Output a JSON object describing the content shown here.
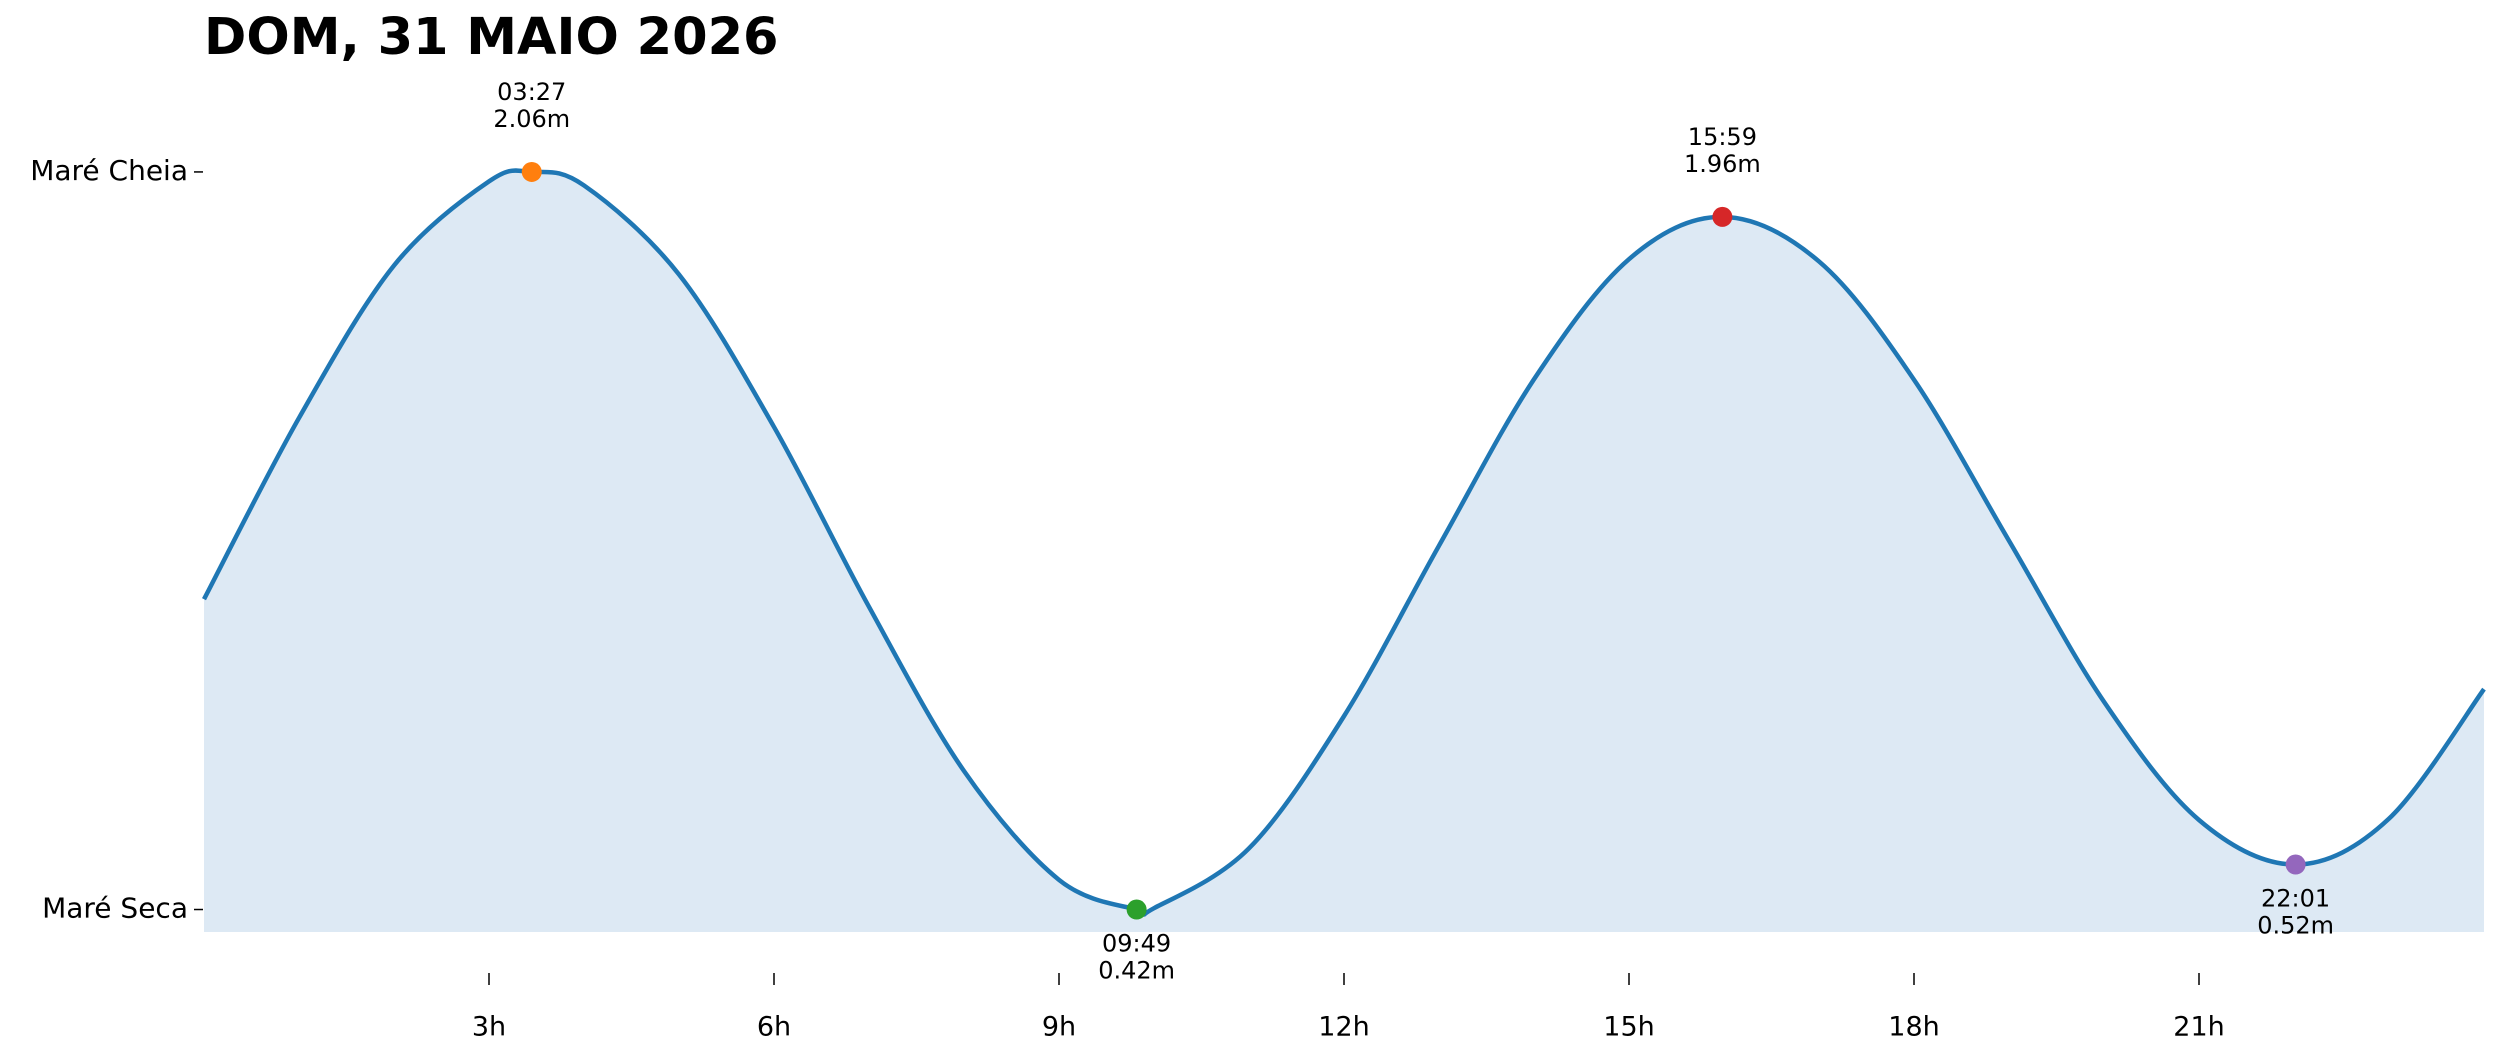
{
  "chart_data": {
    "type": "line",
    "title": "DOM, 31 MAIO 2026",
    "x": [
      0,
      1,
      2,
      3,
      3.45,
      4,
      5,
      6,
      7,
      8,
      9,
      9.817,
      10,
      11,
      12,
      13,
      14,
      15,
      15.983,
      17,
      18,
      19,
      20,
      21,
      22.017,
      23,
      24
    ],
    "series": [
      {
        "color": "#1f77b4",
        "fill_color": "#dde9f4",
        "values": [
          1.11,
          1.513,
          1.852,
          2.039,
          2.06,
          2.03,
          1.832,
          1.493,
          1.093,
          0.728,
          0.486,
          0.42,
          0.423,
          0.556,
          0.85,
          1.229,
          1.599,
          1.866,
          1.96,
          1.861,
          1.598,
          1.24,
          0.882,
          0.619,
          0.52,
          0.622,
          0.91
        ]
      }
    ],
    "extremes": {
      "x": [
        3.45,
        9.817,
        15.983,
        22.017
      ],
      "x_labels": [
        "03:27",
        "09:49",
        "15:59",
        "22:01"
      ],
      "values": [
        2.06,
        0.42,
        1.96,
        0.52
      ],
      "value_labels": [
        "2.06m",
        "0.42m",
        "1.96m",
        "0.52m"
      ],
      "kinds": [
        "high",
        "low",
        "high",
        "low"
      ],
      "colors": [
        "#ff7f0e",
        "#2ca02c",
        "#d62728",
        "#9467bd"
      ]
    },
    "xlim": [
      0,
      24
    ],
    "xticks": [
      {
        "value": 3,
        "label": "3h"
      },
      {
        "value": 6,
        "label": "6h"
      },
      {
        "value": 9,
        "label": "9h"
      },
      {
        "value": 12,
        "label": "12h"
      },
      {
        "value": 15,
        "label": "15h"
      },
      {
        "value": 18,
        "label": "18h"
      },
      {
        "value": 21,
        "label": "21h"
      }
    ],
    "ylim": [
      0.37,
      2.3
    ],
    "yticks": [
      {
        "value": 0.42,
        "label": "Maré Seca"
      },
      {
        "value": 2.06,
        "label": "Maré Cheia"
      }
    ]
  }
}
